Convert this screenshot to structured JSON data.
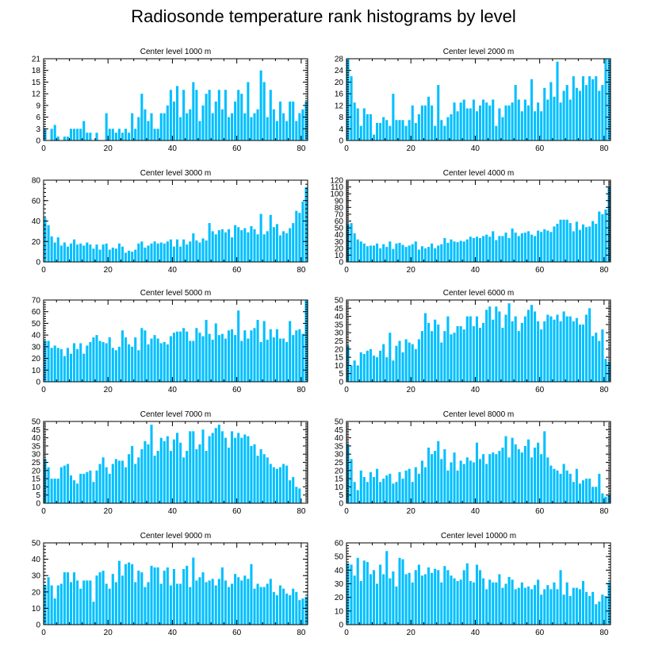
{
  "title": "Radiosonde temperature rank histograms by level",
  "colors": {
    "bar": "#00BFFF",
    "axis": "#000000",
    "background": "#FFFFFF"
  },
  "chart_data": [
    {
      "type": "bar",
      "title": "Center level 1000 m",
      "x_start": 0,
      "xlim": [
        0,
        82
      ],
      "ylim": [
        0,
        21
      ],
      "xticks": [
        0,
        20,
        40,
        60,
        80
      ],
      "yticks": [
        0,
        3,
        6,
        9,
        12,
        15,
        18,
        21
      ],
      "values": [
        3,
        0,
        3,
        4,
        1,
        0,
        1,
        1,
        3,
        3,
        3,
        3,
        5,
        2,
        2,
        0,
        2,
        0,
        0,
        7,
        3,
        3,
        2,
        3,
        2,
        3,
        2,
        7,
        3,
        6,
        12,
        8,
        5,
        7,
        3,
        3,
        7,
        7,
        9,
        13,
        10,
        14,
        6,
        13,
        7,
        8,
        15,
        13,
        5,
        9,
        12,
        13,
        7,
        10,
        13,
        8,
        13,
        6,
        7,
        10,
        13,
        12,
        7,
        15,
        6,
        7,
        8,
        18,
        15,
        6,
        13,
        8,
        5,
        10,
        7,
        5,
        10,
        10,
        5,
        7,
        8,
        10
      ]
    },
    {
      "type": "bar",
      "title": "Center level 2000 m",
      "x_start": 0,
      "xlim": [
        0,
        82
      ],
      "ylim": [
        0,
        28
      ],
      "xticks": [
        0,
        20,
        40,
        60,
        80
      ],
      "yticks": [
        0,
        4,
        8,
        12,
        16,
        20,
        24,
        28
      ],
      "values": [
        28,
        22,
        13,
        11,
        5,
        11,
        9,
        9,
        2,
        6,
        6,
        8,
        7,
        5,
        16,
        7,
        7,
        7,
        5,
        7,
        12,
        6,
        9,
        12,
        12,
        15,
        12,
        5,
        19,
        7,
        5,
        8,
        9,
        13,
        10,
        13,
        14,
        11,
        11,
        14,
        10,
        12,
        14,
        13,
        12,
        14,
        5,
        11,
        8,
        12,
        12,
        13,
        19,
        14,
        10,
        14,
        12,
        21,
        10,
        13,
        10,
        18,
        14,
        20,
        15,
        27,
        13,
        17,
        19,
        14,
        22,
        18,
        17,
        22,
        19,
        22,
        21,
        22,
        17,
        19,
        28,
        28
      ]
    },
    {
      "type": "bar",
      "title": "Center level 3000 m",
      "x_start": 0,
      "xlim": [
        0,
        82
      ],
      "ylim": [
        0,
        80
      ],
      "xticks": [
        0,
        20,
        40,
        60,
        80
      ],
      "yticks": [
        0,
        20,
        40,
        60,
        80
      ],
      "values": [
        43,
        36,
        25,
        19,
        24,
        16,
        19,
        15,
        18,
        22,
        17,
        18,
        16,
        19,
        17,
        13,
        17,
        12,
        17,
        18,
        12,
        14,
        13,
        18,
        15,
        9,
        11,
        10,
        12,
        18,
        20,
        14,
        16,
        18,
        20,
        18,
        19,
        18,
        20,
        22,
        15,
        22,
        15,
        22,
        17,
        20,
        28,
        21,
        19,
        23,
        21,
        38,
        30,
        27,
        31,
        32,
        29,
        32,
        24,
        36,
        34,
        31,
        33,
        29,
        35,
        32,
        27,
        47,
        27,
        30,
        46,
        34,
        37,
        26,
        30,
        28,
        33,
        38,
        50,
        48,
        59,
        73
      ]
    },
    {
      "type": "bar",
      "title": "Center level 4000 m",
      "x_start": 0,
      "xlim": [
        0,
        82
      ],
      "ylim": [
        0,
        120
      ],
      "xticks": [
        0,
        20,
        40,
        60,
        80
      ],
      "yticks": [
        0,
        10,
        20,
        30,
        40,
        50,
        60,
        70,
        80,
        90,
        100,
        110,
        120
      ],
      "values": [
        55,
        57,
        42,
        33,
        30,
        27,
        23,
        24,
        24,
        27,
        20,
        26,
        22,
        30,
        19,
        27,
        28,
        25,
        22,
        24,
        26,
        30,
        18,
        23,
        20,
        22,
        27,
        20,
        24,
        26,
        35,
        28,
        33,
        30,
        29,
        31,
        30,
        33,
        37,
        35,
        37,
        35,
        38,
        40,
        37,
        45,
        32,
        38,
        38,
        43,
        35,
        49,
        43,
        38,
        42,
        43,
        45,
        40,
        38,
        46,
        44,
        48,
        46,
        44,
        52,
        56,
        62,
        62,
        62,
        57,
        45,
        59,
        47,
        55,
        51,
        52,
        60,
        56,
        74,
        70,
        77,
        110
      ]
    },
    {
      "type": "bar",
      "title": "Center level 5000 m",
      "x_start": 0,
      "xlim": [
        0,
        82
      ],
      "ylim": [
        0,
        70
      ],
      "xticks": [
        0,
        20,
        40,
        60,
        80
      ],
      "yticks": [
        0,
        10,
        20,
        30,
        40,
        50,
        60,
        70
      ],
      "values": [
        35,
        35,
        29,
        31,
        29,
        28,
        22,
        29,
        24,
        33,
        28,
        33,
        24,
        31,
        34,
        38,
        40,
        35,
        34,
        33,
        38,
        29,
        27,
        30,
        44,
        38,
        32,
        30,
        38,
        27,
        46,
        44,
        32,
        37,
        40,
        37,
        33,
        34,
        32,
        39,
        42,
        43,
        43,
        46,
        43,
        35,
        35,
        46,
        42,
        39,
        53,
        41,
        36,
        50,
        40,
        41,
        37,
        44,
        45,
        40,
        61,
        35,
        44,
        37,
        44,
        46,
        53,
        34,
        52,
        36,
        45,
        38,
        45,
        37,
        37,
        34,
        52,
        40,
        44,
        45,
        41,
        70
      ]
    },
    {
      "type": "bar",
      "title": "Center level 6000 m",
      "x_start": 0,
      "xlim": [
        0,
        82
      ],
      "ylim": [
        0,
        50
      ],
      "xticks": [
        0,
        20,
        40,
        60,
        80
      ],
      "yticks": [
        0,
        5,
        10,
        15,
        20,
        25,
        30,
        35,
        40,
        45,
        50
      ],
      "values": [
        22,
        10,
        13,
        10,
        18,
        17,
        19,
        20,
        16,
        15,
        19,
        23,
        15,
        30,
        13,
        22,
        25,
        18,
        26,
        24,
        23,
        20,
        26,
        31,
        42,
        36,
        31,
        38,
        35,
        24,
        31,
        40,
        29,
        30,
        34,
        34,
        32,
        40,
        40,
        34,
        40,
        33,
        36,
        44,
        46,
        38,
        46,
        43,
        33,
        41,
        48,
        37,
        40,
        31,
        36,
        40,
        44,
        47,
        43,
        37,
        32,
        37,
        41,
        40,
        38,
        41,
        37,
        43,
        40,
        40,
        37,
        39,
        35,
        35,
        41,
        45,
        28,
        30,
        25,
        32,
        14,
        12
      ]
    },
    {
      "type": "bar",
      "title": "Center level 7000 m",
      "x_start": 0,
      "xlim": [
        0,
        82
      ],
      "ylim": [
        0,
        50
      ],
      "xticks": [
        0,
        20,
        40,
        60,
        80
      ],
      "yticks": [
        0,
        5,
        10,
        15,
        20,
        25,
        30,
        35,
        40,
        45,
        50
      ],
      "values": [
        27,
        22,
        15,
        15,
        15,
        22,
        23,
        24,
        17,
        14,
        12,
        18,
        18,
        19,
        20,
        13,
        20,
        24,
        28,
        22,
        18,
        24,
        27,
        26,
        26,
        22,
        30,
        35,
        24,
        28,
        33,
        38,
        36,
        48,
        29,
        32,
        40,
        38,
        41,
        32,
        39,
        43,
        37,
        28,
        32,
        44,
        44,
        33,
        36,
        45,
        32,
        41,
        43,
        46,
        48,
        44,
        40,
        34,
        44,
        40,
        43,
        40,
        42,
        41,
        35,
        36,
        29,
        33,
        30,
        28,
        24,
        22,
        21,
        22,
        24,
        23,
        14,
        16,
        10,
        9,
        0,
        0
      ]
    },
    {
      "type": "bar",
      "title": "Center level 8000 m",
      "x_start": 0,
      "xlim": [
        0,
        82
      ],
      "ylim": [
        0,
        50
      ],
      "xticks": [
        0,
        20,
        40,
        60,
        80
      ],
      "yticks": [
        0,
        5,
        10,
        15,
        20,
        25,
        30,
        35,
        40,
        45,
        50
      ],
      "values": [
        36,
        27,
        13,
        8,
        20,
        16,
        13,
        19,
        16,
        21,
        13,
        15,
        17,
        18,
        12,
        13,
        19,
        15,
        20,
        21,
        13,
        22,
        18,
        26,
        22,
        34,
        30,
        32,
        38,
        27,
        33,
        20,
        25,
        31,
        20,
        26,
        24,
        28,
        26,
        25,
        37,
        27,
        30,
        24,
        30,
        31,
        30,
        32,
        34,
        41,
        28,
        40,
        36,
        33,
        31,
        35,
        39,
        28,
        34,
        37,
        30,
        44,
        28,
        23,
        21,
        20,
        18,
        24,
        20,
        18,
        13,
        21,
        12,
        14,
        15,
        15,
        10,
        10,
        18,
        6,
        4,
        5
      ]
    },
    {
      "type": "bar",
      "title": "Center level 9000 m",
      "x_start": 0,
      "xlim": [
        0,
        82
      ],
      "ylim": [
        0,
        50
      ],
      "xticks": [
        0,
        20,
        40,
        60,
        80
      ],
      "yticks": [
        0,
        10,
        20,
        30,
        40,
        50
      ],
      "values": [
        24,
        29,
        24,
        16,
        24,
        25,
        32,
        32,
        26,
        32,
        27,
        22,
        27,
        27,
        27,
        14,
        30,
        32,
        33,
        25,
        22,
        31,
        26,
        39,
        30,
        37,
        38,
        37,
        26,
        33,
        32,
        23,
        26,
        36,
        35,
        35,
        25,
        33,
        35,
        24,
        34,
        25,
        25,
        34,
        36,
        23,
        41,
        27,
        29,
        32,
        26,
        27,
        28,
        24,
        28,
        35,
        27,
        23,
        25,
        31,
        29,
        27,
        30,
        28,
        37,
        22,
        25,
        23,
        23,
        25,
        28,
        20,
        18,
        24,
        22,
        19,
        18,
        22,
        20,
        15,
        16,
        17
      ]
    },
    {
      "type": "bar",
      "title": "Center level 10000 m",
      "x_start": 0,
      "xlim": [
        0,
        82
      ],
      "ylim": [
        0,
        60
      ],
      "xticks": [
        0,
        20,
        40,
        60,
        80
      ],
      "yticks": [
        0,
        10,
        20,
        30,
        40,
        50,
        60
      ],
      "values": [
        45,
        44,
        36,
        49,
        32,
        47,
        46,
        37,
        40,
        30,
        44,
        37,
        54,
        34,
        39,
        28,
        49,
        48,
        37,
        38,
        31,
        40,
        44,
        36,
        37,
        42,
        38,
        41,
        40,
        31,
        43,
        40,
        36,
        34,
        32,
        33,
        40,
        45,
        32,
        31,
        44,
        40,
        34,
        26,
        33,
        31,
        31,
        37,
        27,
        30,
        35,
        33,
        26,
        27,
        31,
        27,
        28,
        26,
        29,
        33,
        22,
        26,
        29,
        26,
        31,
        26,
        40,
        22,
        31,
        21,
        27,
        27,
        26,
        32,
        24,
        21,
        24,
        15,
        17,
        22,
        21,
        31
      ]
    }
  ]
}
